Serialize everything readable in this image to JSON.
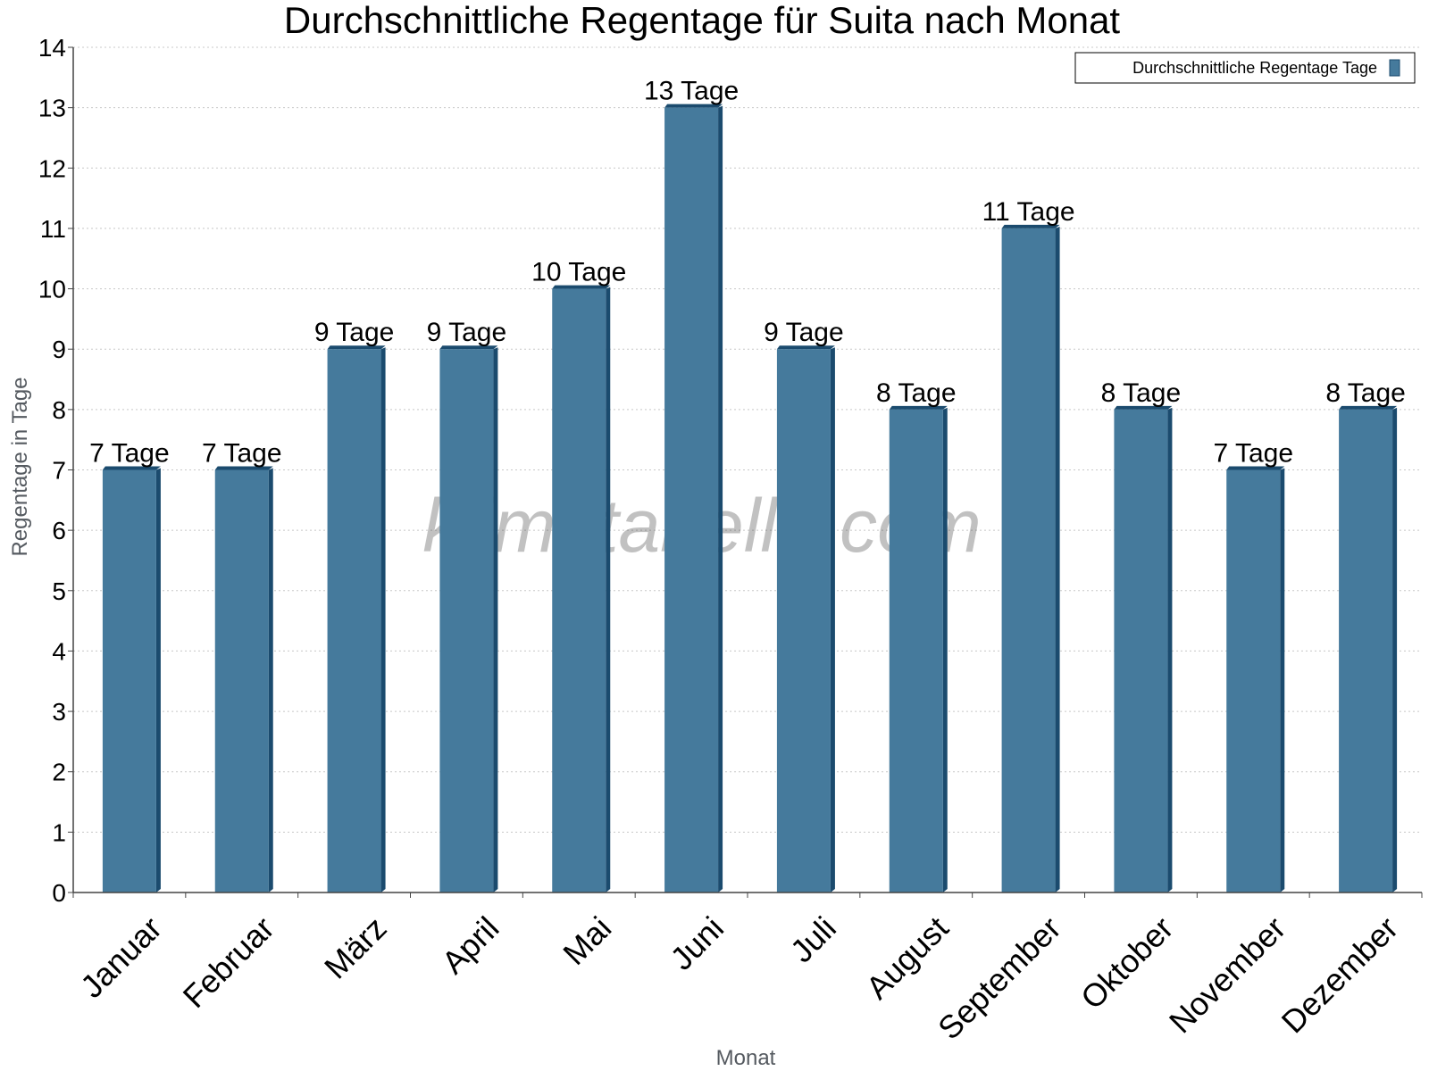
{
  "chart_data": {
    "type": "bar",
    "title": "Durchschnittliche Regentage für Suita nach Monat",
    "xlabel": "Monat",
    "ylabel": "Regentage in Tage",
    "categories": [
      "Januar",
      "Februar",
      "März",
      "April",
      "Mai",
      "Juni",
      "Juli",
      "August",
      "September",
      "Oktober",
      "November",
      "Dezember"
    ],
    "series": [
      {
        "name": "Durchschnittliche Regentage Tage",
        "values": [
          7,
          7,
          9,
          9,
          10,
          13,
          9,
          8,
          11,
          8,
          7,
          8
        ],
        "data_labels": [
          "7 Tage",
          "7 Tage",
          "9 Tage",
          "9 Tage",
          "10 Tage",
          "13 Tage",
          "9 Tage",
          "8 Tage",
          "11 Tage",
          "8 Tage",
          "7 Tage",
          "8 Tage"
        ],
        "color": "#457a9c",
        "side_color": "#1b4b6e"
      }
    ],
    "ylim": [
      0,
      14
    ],
    "yticks": [
      0,
      1,
      2,
      3,
      4,
      5,
      6,
      7,
      8,
      9,
      10,
      11,
      12,
      13,
      14
    ],
    "grid": true,
    "legend_position": "top-right",
    "watermark": "klimatabelle.com"
  }
}
